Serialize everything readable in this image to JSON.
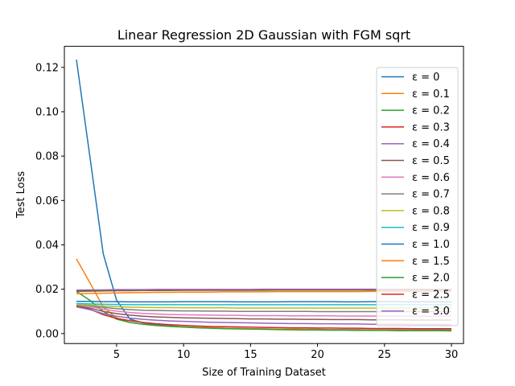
{
  "chart_data": {
    "type": "line",
    "title": "Linear Regression 2D Gaussian with FGM sqrt",
    "xlabel": "Size of Training Dataset",
    "ylabel": "Test Loss",
    "xlim": [
      1.1,
      30.9
    ],
    "ylim": [
      -0.0045,
      0.1295
    ],
    "xticks": [
      5,
      10,
      15,
      20,
      25,
      30
    ],
    "yticks": [
      0.0,
      0.02,
      0.04,
      0.06,
      0.08,
      0.1,
      0.12
    ],
    "ytick_labels": [
      "0.00",
      "0.02",
      "0.04",
      "0.06",
      "0.08",
      "0.10",
      "0.12"
    ],
    "legend_position": "upper-right",
    "grid": false,
    "x": [
      2,
      3,
      4,
      5,
      6,
      7,
      8,
      9,
      10,
      11,
      12,
      13,
      14,
      15,
      16,
      17,
      18,
      19,
      20,
      21,
      22,
      23,
      24,
      25,
      26,
      27,
      28,
      29,
      30
    ],
    "series": [
      {
        "name": "ε = 0",
        "color": "#1f77b4",
        "values": [
          0.1235,
          0.08,
          0.036,
          0.015,
          0.0065,
          0.0048,
          0.004,
          0.0035,
          0.003,
          0.0028,
          0.0026,
          0.0024,
          0.0023,
          0.0022,
          0.0021,
          0.002,
          0.002,
          0.0019,
          0.0019,
          0.0018,
          0.0018,
          0.0018,
          0.0017,
          0.0017,
          0.0017,
          0.0016,
          0.0016,
          0.0016,
          0.0016
        ]
      },
      {
        "name": "ε = 0.1",
        "color": "#ff7f0e",
        "values": [
          0.0337,
          0.023,
          0.012,
          0.007,
          0.005,
          0.0042,
          0.0037,
          0.0033,
          0.003,
          0.0028,
          0.0026,
          0.0024,
          0.0023,
          0.0022,
          0.0021,
          0.002,
          0.002,
          0.0019,
          0.0018,
          0.0018,
          0.0017,
          0.0017,
          0.0016,
          0.0016,
          0.0015,
          0.0015,
          0.0015,
          0.0014,
          0.0014
        ]
      },
      {
        "name": "ε = 0.2",
        "color": "#2ca02c",
        "values": [
          0.019,
          0.015,
          0.01,
          0.0065,
          0.005,
          0.0042,
          0.0036,
          0.0032,
          0.0029,
          0.0026,
          0.0024,
          0.0022,
          0.0021,
          0.002,
          0.0019,
          0.0018,
          0.0017,
          0.0016,
          0.0016,
          0.0015,
          0.0015,
          0.0014,
          0.0014,
          0.0014,
          0.0013,
          0.0013,
          0.0013,
          0.0013,
          0.0012
        ]
      },
      {
        "name": "ε = 0.3",
        "color": "#d62728",
        "values": [
          0.0125,
          0.011,
          0.0085,
          0.0068,
          0.0058,
          0.005,
          0.0044,
          0.004,
          0.0037,
          0.0034,
          0.0032,
          0.0031,
          0.003,
          0.0029,
          0.0028,
          0.0027,
          0.0026,
          0.0026,
          0.0025,
          0.0025,
          0.0024,
          0.0024,
          0.0023,
          0.0023,
          0.0023,
          0.0022,
          0.0022,
          0.0022,
          0.0022
        ]
      },
      {
        "name": "ε = 0.4",
        "color": "#9467bd",
        "values": [
          0.012,
          0.0108,
          0.009,
          0.0078,
          0.007,
          0.0064,
          0.006,
          0.0057,
          0.0055,
          0.0053,
          0.0051,
          0.005,
          0.0049,
          0.0048,
          0.0047,
          0.0046,
          0.0045,
          0.0045,
          0.0044,
          0.0044,
          0.0043,
          0.0043,
          0.0042,
          0.0042,
          0.0042,
          0.0041,
          0.0041,
          0.0041,
          0.004
        ]
      },
      {
        "name": "ε = 0.5",
        "color": "#8c564b",
        "values": [
          0.0125,
          0.0115,
          0.01,
          0.009,
          0.0083,
          0.0078,
          0.0075,
          0.0073,
          0.0071,
          0.007,
          0.0069,
          0.0068,
          0.0067,
          0.0066,
          0.0066,
          0.0065,
          0.0065,
          0.0064,
          0.0064,
          0.0063,
          0.0063,
          0.0063,
          0.0062,
          0.0062,
          0.0062,
          0.0061,
          0.0061,
          0.0061,
          0.0061
        ]
      },
      {
        "name": "ε = 0.6",
        "color": "#e377c2",
        "values": [
          0.013,
          0.0122,
          0.011,
          0.0101,
          0.0095,
          0.0091,
          0.0088,
          0.0086,
          0.0085,
          0.0084,
          0.0083,
          0.0082,
          0.0082,
          0.0081,
          0.0081,
          0.0081,
          0.008,
          0.008,
          0.008,
          0.008,
          0.0079,
          0.0079,
          0.0079,
          0.0079,
          0.0079,
          0.0079,
          0.0078,
          0.0078,
          0.0078
        ]
      },
      {
        "name": "ε = 0.7",
        "color": "#7f7f7f",
        "values": [
          0.013,
          0.0125,
          0.0118,
          0.0112,
          0.0108,
          0.0105,
          0.0104,
          0.0103,
          0.0102,
          0.0102,
          0.0101,
          0.0101,
          0.01,
          0.01,
          0.01,
          0.01,
          0.01,
          0.01,
          0.0099,
          0.0099,
          0.0099,
          0.0099,
          0.0099,
          0.0099,
          0.0099,
          0.0099,
          0.0099,
          0.0099,
          0.0099
        ]
      },
      {
        "name": "ε = 0.8",
        "color": "#bcbd22",
        "values": [
          0.013,
          0.0128,
          0.0124,
          0.0121,
          0.0119,
          0.0118,
          0.0117,
          0.0117,
          0.0116,
          0.0116,
          0.0116,
          0.0116,
          0.0115,
          0.0115,
          0.0115,
          0.0115,
          0.0115,
          0.0115,
          0.0115,
          0.0115,
          0.0115,
          0.0115,
          0.0115,
          0.0115,
          0.0115,
          0.0115,
          0.0115,
          0.0115,
          0.0115
        ]
      },
      {
        "name": "ε = 0.9",
        "color": "#17becf",
        "values": [
          0.0135,
          0.0134,
          0.0132,
          0.0131,
          0.013,
          0.013,
          0.013,
          0.013,
          0.013,
          0.013,
          0.013,
          0.013,
          0.013,
          0.013,
          0.013,
          0.013,
          0.013,
          0.013,
          0.013,
          0.013,
          0.013,
          0.013,
          0.013,
          0.013,
          0.013,
          0.013,
          0.013,
          0.013,
          0.013
        ]
      },
      {
        "name": "ε = 1.0",
        "color": "#1f77b4",
        "values": [
          0.0145,
          0.0145,
          0.0144,
          0.0144,
          0.0143,
          0.0143,
          0.0143,
          0.0143,
          0.0144,
          0.0144,
          0.0144,
          0.0144,
          0.0143,
          0.0143,
          0.0143,
          0.0143,
          0.0144,
          0.0144,
          0.0144,
          0.0144,
          0.0143,
          0.0143,
          0.0144,
          0.0144,
          0.0144,
          0.0143,
          0.0143,
          0.0143,
          0.0143
        ]
      },
      {
        "name": "ε = 1.5",
        "color": "#ff7f0e",
        "values": [
          0.018,
          0.0181,
          0.0182,
          0.0183,
          0.0184,
          0.0185,
          0.0186,
          0.0186,
          0.0187,
          0.0187,
          0.0187,
          0.0188,
          0.0188,
          0.0188,
          0.0188,
          0.0189,
          0.0189,
          0.0189,
          0.0189,
          0.0189,
          0.0189,
          0.0189,
          0.019,
          0.019,
          0.019,
          0.019,
          0.019,
          0.019,
          0.019
        ]
      },
      {
        "name": "ε = 2.0",
        "color": "#2ca02c",
        "values": [
          0.019,
          0.0191,
          0.0192,
          0.0193,
          0.0193,
          0.0194,
          0.0194,
          0.0194,
          0.0195,
          0.0195,
          0.0195,
          0.0195,
          0.0195,
          0.0195,
          0.0195,
          0.0196,
          0.0196,
          0.0196,
          0.0196,
          0.0196,
          0.0196,
          0.0196,
          0.0196,
          0.0196,
          0.0196,
          0.0196,
          0.0196,
          0.0196,
          0.0196
        ]
      },
      {
        "name": "ε = 2.5",
        "color": "#d62728",
        "values": [
          0.0193,
          0.0194,
          0.0195,
          0.0195,
          0.0196,
          0.0196,
          0.0196,
          0.0197,
          0.0197,
          0.0197,
          0.0197,
          0.0197,
          0.0197,
          0.0197,
          0.0198,
          0.0198,
          0.0198,
          0.0198,
          0.0198,
          0.0198,
          0.0198,
          0.0198,
          0.0198,
          0.0198,
          0.0198,
          0.0198,
          0.0198,
          0.0198,
          0.0198
        ]
      },
      {
        "name": "ε = 3.0",
        "color": "#9467bd",
        "values": [
          0.0196,
          0.0197,
          0.0197,
          0.0198,
          0.0198,
          0.0198,
          0.0199,
          0.0199,
          0.0199,
          0.0199,
          0.0199,
          0.0199,
          0.0199,
          0.0199,
          0.02,
          0.02,
          0.02,
          0.02,
          0.02,
          0.02,
          0.02,
          0.02,
          0.02,
          0.02,
          0.02,
          0.02,
          0.02,
          0.02,
          0.02
        ]
      }
    ]
  }
}
